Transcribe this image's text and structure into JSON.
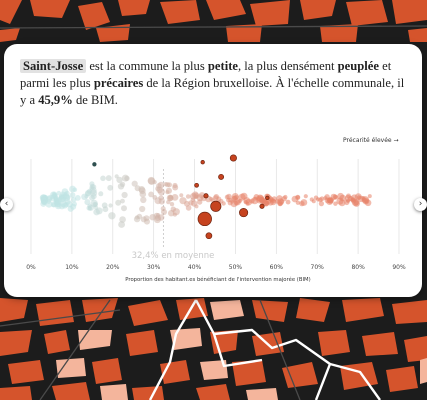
{
  "intro": {
    "commune": "Saint-Josse",
    "t1": " est la commune la plus ",
    "b1": "petite",
    "t2": ", la plus densément ",
    "b2": "peuplée",
    "t3": " et parmi les plus ",
    "b3": "précaires",
    "t4": " de la Région bruxelloise. À l'échelle communale, il y a ",
    "b4": "45,9%",
    "t5": " de BIM."
  },
  "nav": {
    "prev_icon": "chevron-left-icon",
    "next_icon": "chevron-right-icon"
  },
  "colors": {
    "cold": "#bfe3e3",
    "warm": "#e8836a",
    "highlight": "#c6431f",
    "dark_dot": "#2f5050"
  },
  "chart_data": {
    "type": "scatter",
    "subtype": "beeswarm",
    "xlabel": "Proportion des habitant.es bénéficiant de l'intervention majorée (BIM)",
    "xlim": [
      0,
      90
    ],
    "ticks": [
      "0%",
      "10%",
      "20%",
      "30%",
      "40%",
      "50%",
      "60%",
      "70%",
      "80%",
      "90%"
    ],
    "tick_values": [
      0,
      10,
      20,
      30,
      40,
      50,
      60,
      70,
      80,
      90
    ],
    "median": {
      "value": 32.4,
      "label": "32,4% en moyenne"
    },
    "annotation": "Précarité élevée →",
    "highlighted": [
      {
        "value": 49.5,
        "rel": 1.0
      },
      {
        "value": 46.5,
        "rel": 0.55
      },
      {
        "value": 45.2,
        "rel": -0.15
      },
      {
        "value": 42.8,
        "rel": 0.1
      },
      {
        "value": 42.0,
        "rel": 0.9
      },
      {
        "value": 40.5,
        "rel": 0.35
      },
      {
        "value": 42.5,
        "rel": -0.45
      },
      {
        "value": 43.5,
        "rel": -0.85
      },
      {
        "value": 52.0,
        "rel": -0.3
      },
      {
        "value": 56.5,
        "rel": -0.15
      },
      {
        "value": 57.8,
        "rel": 0.05
      },
      {
        "value": 15.5,
        "rel": 0.85
      }
    ]
  }
}
